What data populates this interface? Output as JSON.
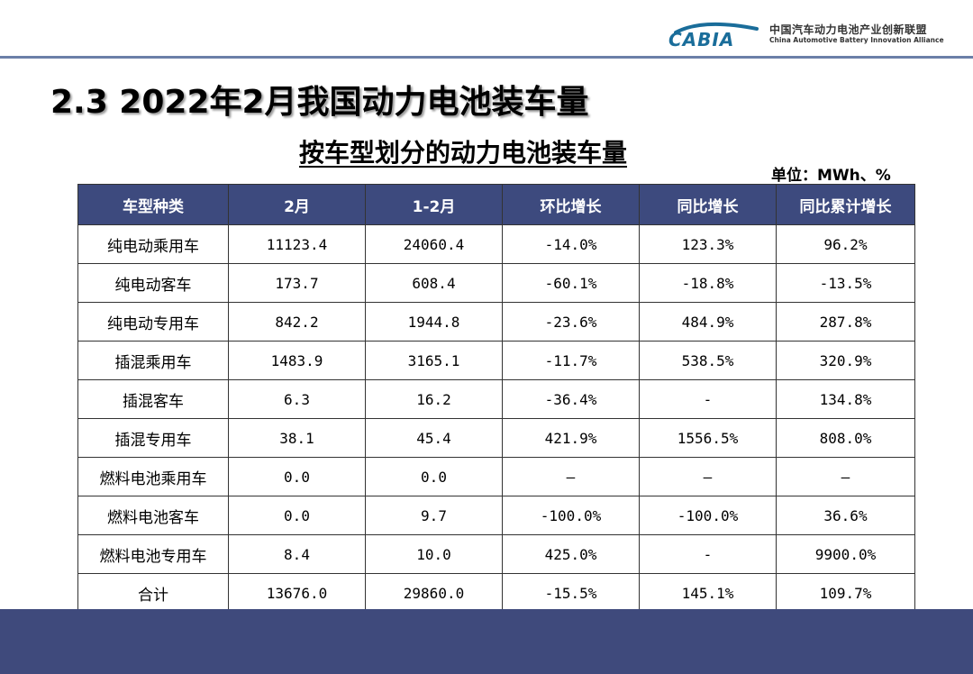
{
  "header": {
    "logo_mark_text": "CABIA",
    "org_name_cn": "中国汽车动力电池产业创新联盟",
    "org_name_en": "China Automotive Battery Innovation Alliance",
    "logo_color": "#1a6d9a"
  },
  "slide": {
    "title": "2.3  2022年2月我国动力电池装车量",
    "table_title": "按车型划分的动力电池装车量",
    "unit": "单位：MWh、%"
  },
  "table": {
    "columns": [
      "车型种类",
      "2月",
      "1-2月",
      "环比增长",
      "同比增长",
      "同比累计增长"
    ],
    "rows": [
      [
        "纯电动乘用车",
        "11123.4",
        "24060.4",
        "-14.0%",
        "123.3%",
        "96.2%"
      ],
      [
        "纯电动客车",
        "173.7",
        "608.4",
        "-60.1%",
        "-18.8%",
        "-13.5%"
      ],
      [
        "纯电动专用车",
        "842.2",
        "1944.8",
        "-23.6%",
        "484.9%",
        "287.8%"
      ],
      [
        "插混乘用车",
        "1483.9",
        "3165.1",
        "-11.7%",
        "538.5%",
        "320.9%"
      ],
      [
        "插混客车",
        "6.3",
        "16.2",
        "-36.4%",
        "-",
        "134.8%"
      ],
      [
        "插混专用车",
        "38.1",
        "45.4",
        "421.9%",
        "1556.5%",
        "808.0%"
      ],
      [
        "燃料电池乘用车",
        "0.0",
        "0.0",
        "—",
        "—",
        "—"
      ],
      [
        "燃料电池客车",
        "0.0",
        "9.7",
        "-100.0%",
        "-100.0%",
        "36.6%"
      ],
      [
        "燃料电池专用车",
        "8.4",
        "10.0",
        "425.0%",
        "-",
        "9900.0%"
      ],
      [
        "合计",
        "13676.0",
        "29860.0",
        "-15.5%",
        "145.1%",
        "109.7%"
      ]
    ]
  },
  "colors": {
    "header_fill": "#3d4a7e",
    "footer_band": "#3f4a7c",
    "rule": "#6b7fa8"
  }
}
